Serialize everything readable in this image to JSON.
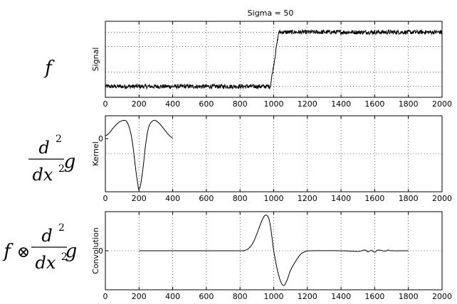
{
  "figure": {
    "title": "Sigma = 50",
    "row_labels": [
      {
        "type": "f",
        "text": "f"
      },
      {
        "type": "second-derivative",
        "num": "d",
        "den": "dx",
        "exp": "2",
        "func": "g"
      },
      {
        "type": "convolved",
        "prefix": "f",
        "operator": "⊗",
        "num": "d",
        "den": "dx",
        "exp": "2",
        "func": "g"
      }
    ]
  },
  "chart_data": [
    {
      "type": "line",
      "title": "Sigma = 50",
      "xlabel": "",
      "ylabel": "Signal",
      "xlim": [
        0,
        2000
      ],
      "ylim": [
        -0.2,
        1.2
      ],
      "xticks": [
        0,
        200,
        400,
        600,
        800,
        1000,
        1200,
        1400,
        1600,
        1800,
        2000
      ],
      "yticks": [],
      "grid": true,
      "series": [
        {
          "style": "noisy step",
          "x": [
            0,
            980,
            1005,
            1030,
            2000
          ],
          "y": [
            0.0,
            0.0,
            0.5,
            1.0,
            1.0
          ],
          "noise_amplitude": 0.04
        }
      ]
    },
    {
      "type": "line",
      "xlabel": "",
      "ylabel": "Kernel",
      "xlim": [
        0,
        2000
      ],
      "ylim": [
        -1.05,
        0.45
      ],
      "xticks": [
        0,
        200,
        400,
        600,
        800,
        1000,
        1200,
        1400,
        1600,
        1800,
        2000
      ],
      "yticks": [
        0
      ],
      "grid": true,
      "series": [
        {
          "x": [
            0,
            20,
            50,
            80,
            110,
            130,
            150,
            165,
            180,
            195,
            200,
            210,
            225,
            240,
            260,
            290,
            320,
            350,
            380,
            400
          ],
          "y": [
            0.05,
            0.1,
            0.22,
            0.32,
            0.36,
            0.32,
            0.12,
            -0.18,
            -0.6,
            -0.95,
            -1.0,
            -0.9,
            -0.55,
            -0.1,
            0.25,
            0.36,
            0.3,
            0.18,
            0.06,
            0.01
          ]
        }
      ]
    },
    {
      "type": "line",
      "xlabel": "",
      "ylabel": "Convolution",
      "xlim": [
        0,
        2000
      ],
      "ylim": [
        -1.1,
        1.1
      ],
      "xticks": [
        0,
        200,
        400,
        600,
        800,
        1000,
        1200,
        1400,
        1600,
        1800,
        2000
      ],
      "yticks": [
        0
      ],
      "grid": true,
      "series": [
        {
          "x": [
            200,
            400,
            600,
            800,
            820,
            850,
            880,
            910,
            930,
            950,
            970,
            985,
            1000,
            1020,
            1040,
            1060,
            1080,
            1100,
            1130,
            1160,
            1190,
            1220,
            1400,
            1500,
            1540,
            1560,
            1580,
            1600,
            1620,
            1660,
            1680,
            1700,
            1800
          ],
          "y": [
            0,
            0,
            0,
            0,
            0.0,
            0.06,
            0.25,
            0.6,
            0.85,
            1.0,
            0.92,
            0.55,
            0.0,
            -0.5,
            -0.85,
            -0.98,
            -0.82,
            -0.55,
            -0.3,
            -0.1,
            -0.02,
            0.0,
            0.0,
            -0.02,
            0.02,
            -0.03,
            0.01,
            -0.04,
            0.02,
            -0.01,
            0.02,
            0.0,
            0.0
          ]
        }
      ]
    }
  ]
}
